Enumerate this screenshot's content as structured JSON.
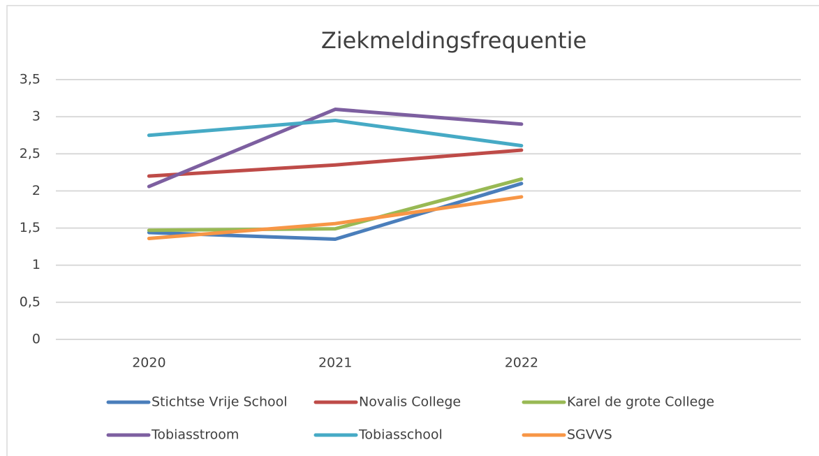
{
  "chart_data": {
    "type": "line",
    "title": "Ziekmeldingsfrequentie",
    "categories": [
      "2020",
      "2021",
      "2022",
      null
    ],
    "series": [
      {
        "name": "Stichtse Vrije School",
        "color": "#4a7ebb",
        "values": [
          1.44,
          1.35,
          2.1,
          null
        ]
      },
      {
        "name": "Novalis College",
        "color": "#be4b48",
        "values": [
          2.2,
          2.35,
          2.55,
          null
        ]
      },
      {
        "name": "Karel de grote College",
        "color": "#98b954",
        "values": [
          1.47,
          1.49,
          2.16,
          null
        ]
      },
      {
        "name": "Tobiasstroom",
        "color": "#7d5fa0",
        "values": [
          2.06,
          3.1,
          2.9,
          null
        ]
      },
      {
        "name": "Tobiasschool",
        "color": "#46aac5",
        "values": [
          2.75,
          2.95,
          2.61,
          null
        ]
      },
      {
        "name": "SGVVS",
        "color": "#f79646",
        "values": [
          1.36,
          1.56,
          1.92,
          null
        ]
      }
    ],
    "ylim": [
      0,
      3.5
    ],
    "yticks": [
      0,
      {
        "value": 0.5,
        "label": "0,5"
      },
      1,
      {
        "value": 1.5,
        "label": "1,5"
      },
      2,
      {
        "value": 2.5,
        "label": "2,5"
      },
      3,
      {
        "value": 3.5,
        "label": "3,5"
      }
    ],
    "grid": true,
    "legend": "bottom"
  }
}
